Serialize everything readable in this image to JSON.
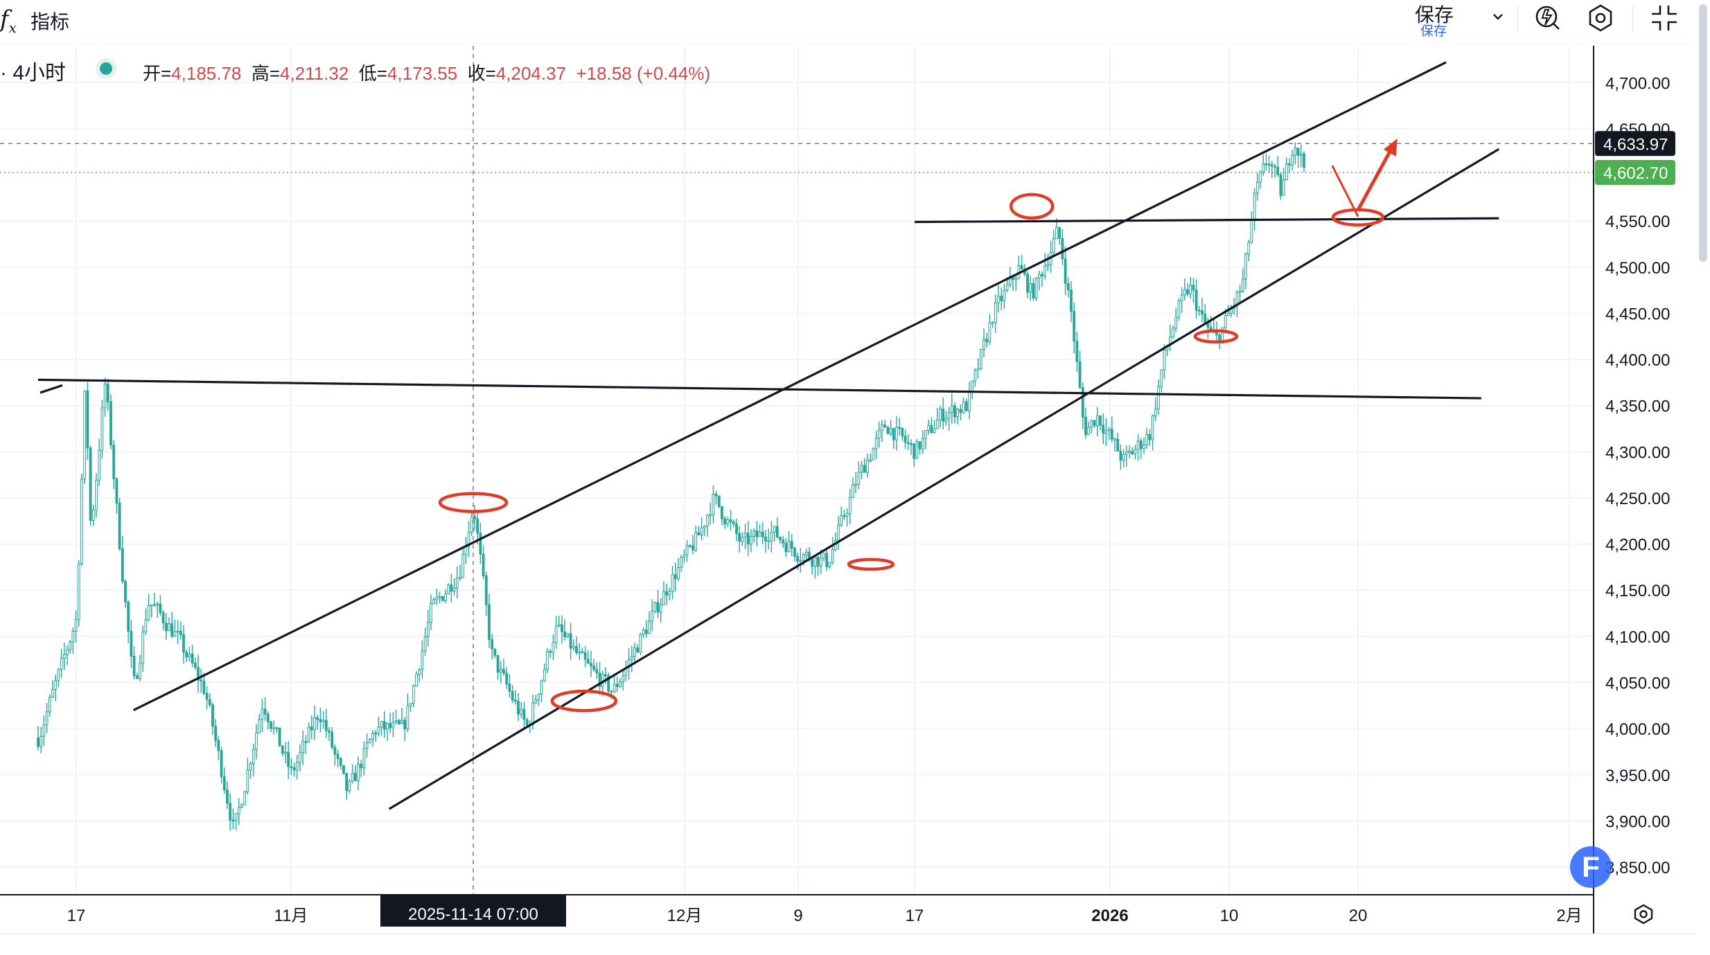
{
  "toolbar": {
    "fx_icon": "fx-icon",
    "indicators_label": "指标",
    "save_label": "保存",
    "save_sublabel": "保存",
    "icons": [
      "chevron-down-icon",
      "alert-icon",
      "settings-icon",
      "fullscreen-icon"
    ]
  },
  "legend": {
    "symbol_interval": "· 4小时",
    "open_key": "开=",
    "open": "4,185.78",
    "high_key": "高=",
    "high": "4,211.32",
    "low_key": "低=",
    "low": "4,173.55",
    "close_key": "收=",
    "close": "4,204.37",
    "change": "+18.58 (+0.44%)"
  },
  "price_badges": {
    "crosshair": "4,633.97",
    "last": "4,602.70"
  },
  "crosshair_time": "2025-11-14  07:00",
  "badge_letter": "F",
  "colors": {
    "up": "#26a69a",
    "down": "#26a69a",
    "legend_value": "#cd4b4b",
    "annotation": "#e03b24",
    "trendline": "#131722",
    "last_price_badge": "#4caf50",
    "crosshair_badge": "#131722"
  },
  "chart_data": {
    "type": "candlestick",
    "title": "",
    "interval": "4小时",
    "ylim": [
      3820,
      4740
    ],
    "y_ticks": [
      "4,700.00",
      "4,650.00",
      "4,550.00",
      "4,500.00",
      "4,450.00",
      "4,400.00",
      "4,350.00",
      "4,300.00",
      "4,250.00",
      "4,200.00",
      "4,150.00",
      "4,100.00",
      "4,050.00",
      "4,000.00",
      "3,950.00",
      "3,900.00",
      "3,850.00"
    ],
    "x_ticks": [
      "17",
      "11月",
      "12月",
      "9",
      "17",
      "2026",
      "10",
      "20",
      "2月"
    ],
    "grid": true,
    "price_path": [
      [
        "2025-10-16",
        3990
      ],
      [
        "2025-10-17",
        4120
      ],
      [
        "2025-10-17b",
        4378
      ],
      [
        "2025-10-18",
        4210
      ],
      [
        "2025-10-19",
        4380
      ],
      [
        "2025-10-20",
        4200
      ],
      [
        "2025-10-21",
        4040
      ],
      [
        "2025-10-22",
        4140
      ],
      [
        "2025-10-24",
        4100
      ],
      [
        "2025-10-26",
        4040
      ],
      [
        "2025-10-28",
        3888
      ],
      [
        "2025-10-30",
        4030
      ],
      [
        "2025-11-01",
        3950
      ],
      [
        "2025-11-03",
        4020
      ],
      [
        "2025-11-05",
        3930
      ],
      [
        "2025-11-07",
        4000
      ],
      [
        "2025-11-09",
        4000
      ],
      [
        "2025-11-11",
        4130
      ],
      [
        "2025-11-13",
        4170
      ],
      [
        "2025-11-14",
        4245
      ],
      [
        "2025-11-16",
        4080
      ],
      [
        "2025-11-18",
        4040
      ],
      [
        "2025-11-20",
        4000
      ],
      [
        "2025-11-22",
        4110
      ],
      [
        "2025-11-24",
        4070
      ],
      [
        "2025-11-26",
        4040
      ],
      [
        "2025-11-28",
        4100
      ],
      [
        "2025-11-30",
        4160
      ],
      [
        "2025-12-02",
        4210
      ],
      [
        "2025-12-03",
        4250
      ],
      [
        "2025-12-05",
        4200
      ],
      [
        "2025-12-07",
        4215
      ],
      [
        "2025-12-09",
        4190
      ],
      [
        "2025-12-11",
        4180
      ],
      [
        "2025-12-13",
        4270
      ],
      [
        "2025-12-15",
        4330
      ],
      [
        "2025-12-17",
        4300
      ],
      [
        "2025-12-19",
        4340
      ],
      [
        "2025-12-21",
        4350
      ],
      [
        "2025-12-23",
        4450
      ],
      [
        "2025-12-25",
        4500
      ],
      [
        "2025-12-26",
        4470
      ],
      [
        "2025-12-28",
        4540
      ],
      [
        "2025-12-29",
        4450
      ],
      [
        "2025-12-30",
        4320
      ],
      [
        "2025-12-31",
        4340
      ],
      [
        "2026-01-02",
        4290
      ],
      [
        "2026-01-04",
        4320
      ],
      [
        "2026-01-05",
        4400
      ],
      [
        "2026-01-06",
        4450
      ],
      [
        "2026-01-07",
        4480
      ],
      [
        "2026-01-08",
        4440
      ],
      [
        "2026-01-09",
        4420
      ],
      [
        "2026-01-11",
        4480
      ],
      [
        "2026-01-12",
        4580
      ],
      [
        "2026-01-13",
        4620
      ],
      [
        "2026-01-14",
        4580
      ],
      [
        "2026-01-15",
        4640
      ],
      [
        "2026-01-16",
        4600
      ]
    ],
    "annotations": [
      {
        "type": "trendline",
        "from": [
          "2025-10-16",
          4378
        ],
        "to": [
          "2026-01-27",
          4358
        ]
      },
      {
        "type": "trendline",
        "from": [
          "2025-10-21",
          4020
        ],
        "to": [
          "2026-01-25",
          4722
        ]
      },
      {
        "type": "trendline",
        "from": [
          "2025-11-08",
          3913
        ],
        "to": [
          "2026-01-28",
          4628
        ]
      },
      {
        "type": "trendline",
        "from": [
          "2025-12-17",
          4549
        ],
        "to": [
          "2026-01-28",
          4553
        ]
      }
    ]
  }
}
